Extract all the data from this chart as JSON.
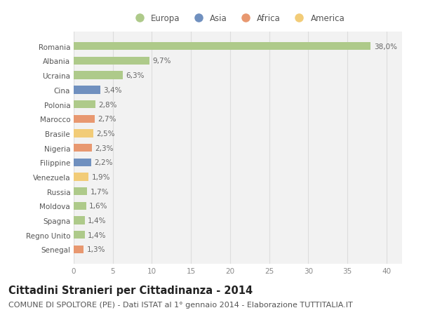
{
  "countries": [
    "Romania",
    "Albania",
    "Ucraina",
    "Cina",
    "Polonia",
    "Marocco",
    "Brasile",
    "Nigeria",
    "Filippine",
    "Venezuela",
    "Russia",
    "Moldova",
    "Spagna",
    "Regno Unito",
    "Senegal"
  ],
  "values": [
    38.0,
    9.7,
    6.3,
    3.4,
    2.8,
    2.7,
    2.5,
    2.3,
    2.2,
    1.9,
    1.7,
    1.6,
    1.4,
    1.4,
    1.3
  ],
  "labels": [
    "38,0%",
    "9,7%",
    "6,3%",
    "3,4%",
    "2,8%",
    "2,7%",
    "2,5%",
    "2,3%",
    "2,2%",
    "1,9%",
    "1,7%",
    "1,6%",
    "1,4%",
    "1,4%",
    "1,3%"
  ],
  "continent": [
    "Europa",
    "Europa",
    "Europa",
    "Asia",
    "Europa",
    "Africa",
    "America",
    "Africa",
    "Asia",
    "America",
    "Europa",
    "Europa",
    "Europa",
    "Europa",
    "Africa"
  ],
  "colors": {
    "Europa": "#AECA8A",
    "Asia": "#7090BF",
    "Africa": "#E89870",
    "America": "#F2CC78"
  },
  "xlim": [
    0,
    42
  ],
  "xticks": [
    0,
    5,
    10,
    15,
    20,
    25,
    30,
    35,
    40
  ],
  "background_color": "#FFFFFF",
  "plot_bg_color": "#F2F2F2",
  "grid_color": "#DDDDDD",
  "title": "Cittadini Stranieri per Cittadinanza - 2014",
  "subtitle": "COMUNE DI SPOLTORE (PE) - Dati ISTAT al 1° gennaio 2014 - Elaborazione TUTTITALIA.IT",
  "title_fontsize": 10.5,
  "subtitle_fontsize": 8,
  "bar_height": 0.55,
  "label_fontsize": 7.5,
  "tick_fontsize": 7.5,
  "legend_order": [
    "Europa",
    "Asia",
    "Africa",
    "America"
  ]
}
